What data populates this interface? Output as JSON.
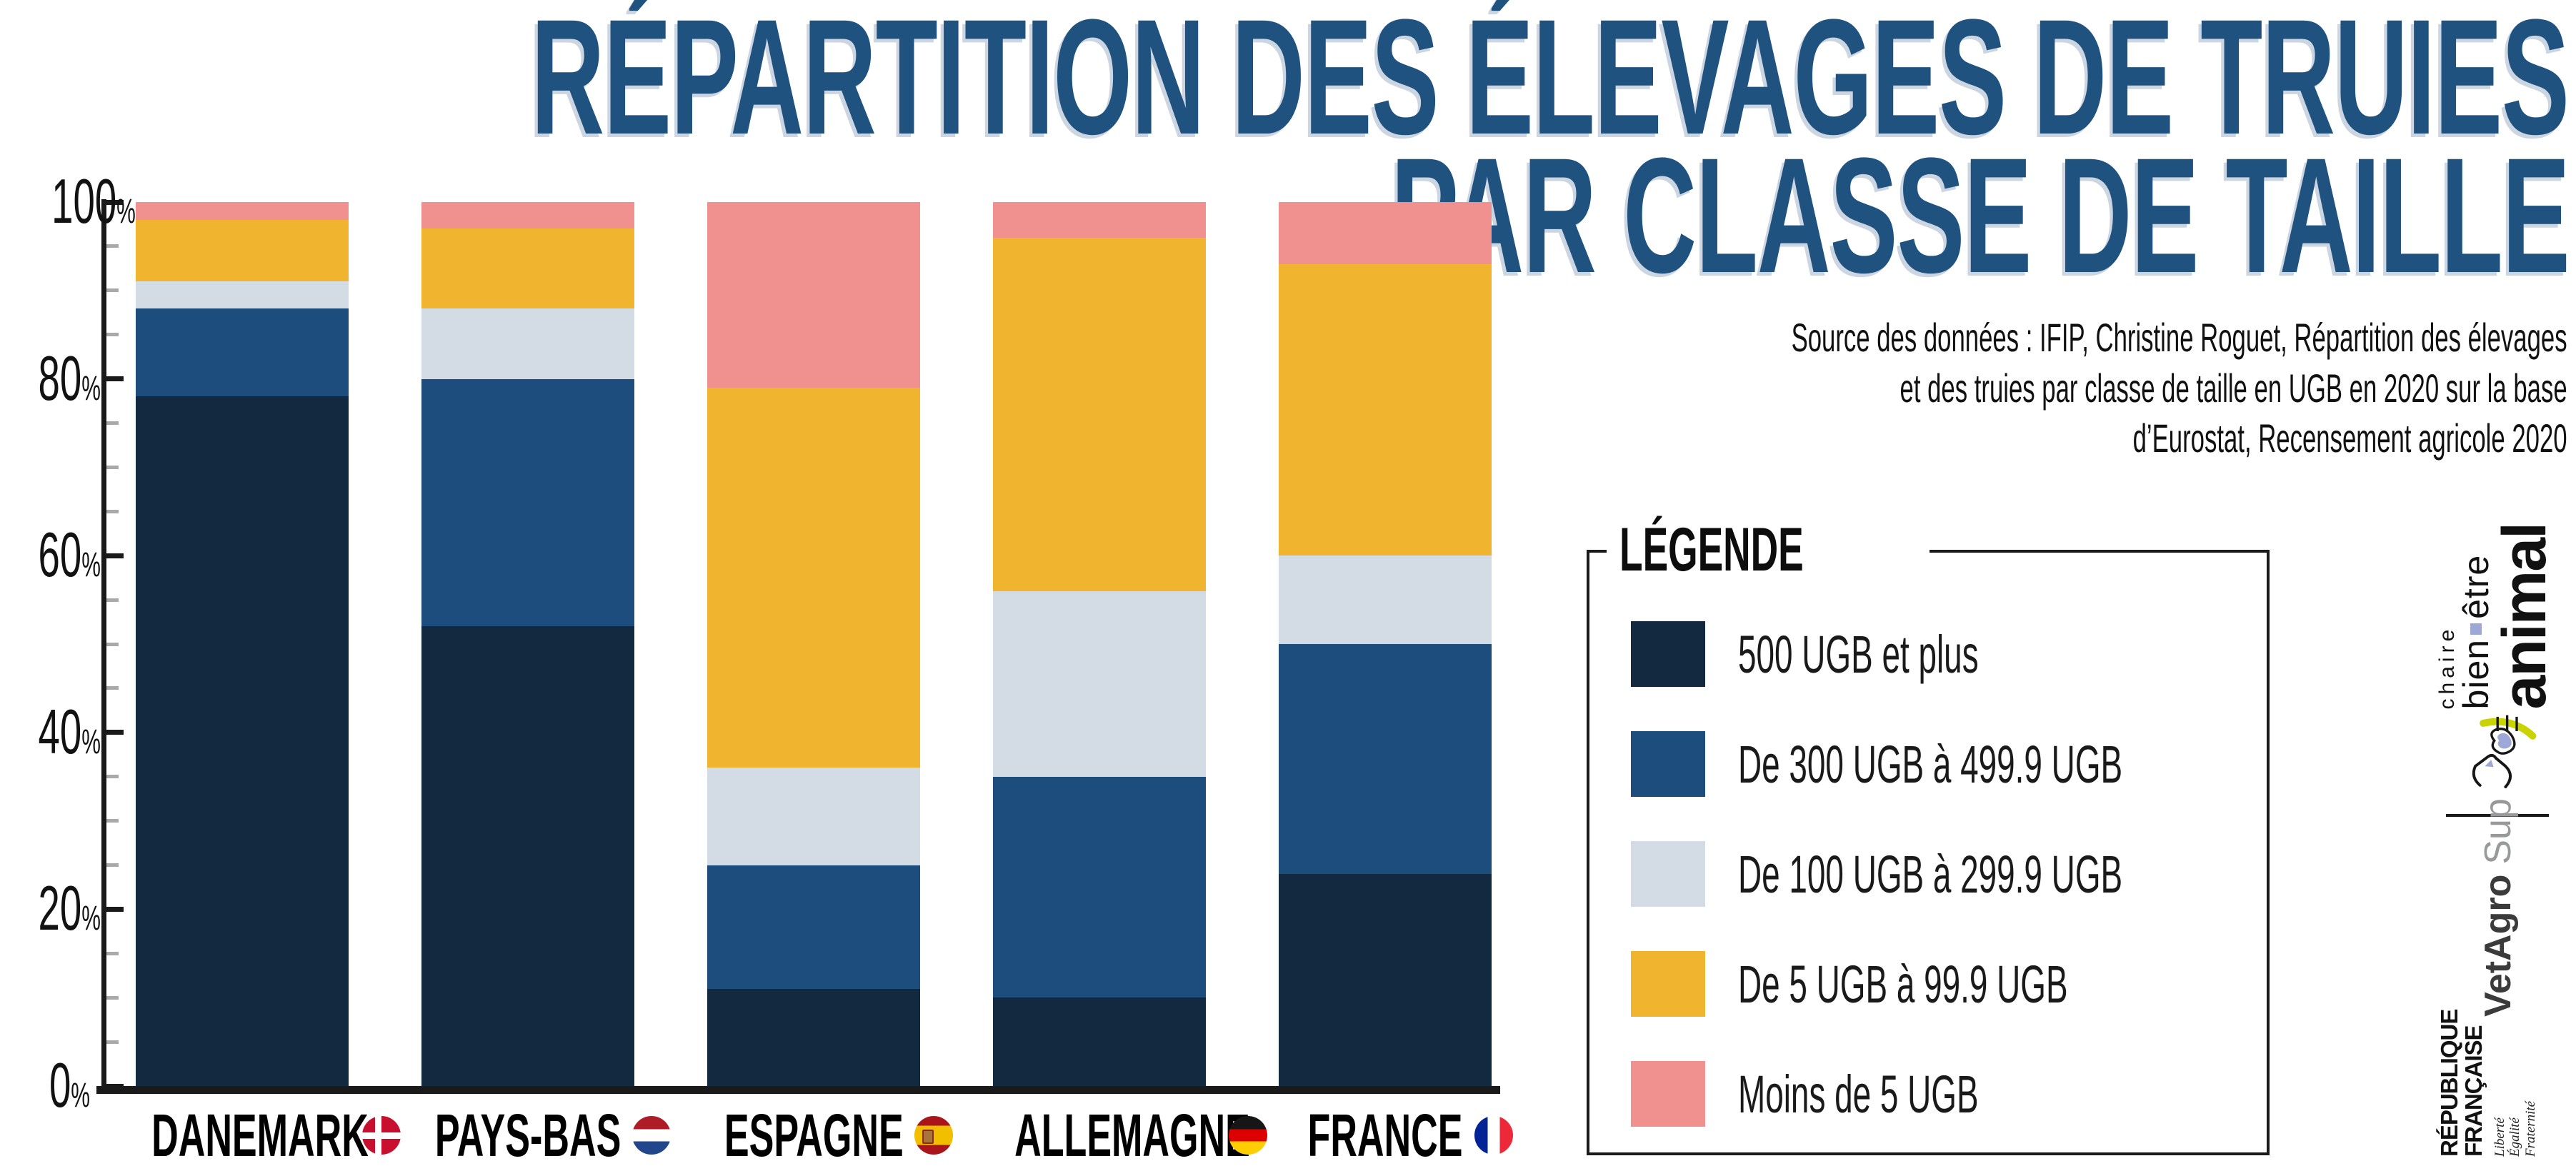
{
  "title": {
    "line1": "RÉPARTITION DES ÉLEVAGES DE TRUIES",
    "line2": "PAR CLASSE DE TAILLE"
  },
  "source": {
    "lines": [
      "Source des données : IFIP, Christine Roguet, Répartition des élevages",
      "et des truies par classe de taille en UGB en 2020 sur la base",
      "d’Eurostat, Recensement agricole 2020"
    ]
  },
  "legend": {
    "title": "LÉGENDE"
  },
  "chart_data": {
    "type": "bar",
    "stacking": "percent",
    "title": "Répartition des élevages de truies par classe de taille",
    "categories": [
      "DANEMARK",
      "PAYS-BAS",
      "ESPAGNE",
      "ALLEMAGNE",
      "FRANCE"
    ],
    "flags": [
      "denmark",
      "netherlands",
      "spain",
      "germany",
      "france"
    ],
    "series": [
      {
        "name": "500 UGB et plus",
        "color": "#122940",
        "values": [
          78,
          52,
          11,
          10,
          24
        ]
      },
      {
        "name": "De 300 UGB à 499.9 UGB",
        "color": "#1c4d7c",
        "values": [
          10,
          28,
          14,
          25,
          26
        ]
      },
      {
        "name": "De 100 UGB à 299.9 UGB",
        "color": "#d3dce5",
        "values": [
          3,
          8,
          11,
          21,
          10
        ]
      },
      {
        "name": "De 5 UGB à 99.9 UGB",
        "color": "#f0b42f",
        "values": [
          7,
          9,
          43,
          40,
          33
        ]
      },
      {
        "name": "Moins de 5 UGB",
        "color": "#f0908f",
        "values": [
          2,
          3,
          21,
          4,
          7
        ]
      }
    ],
    "ylim": [
      0,
      100
    ],
    "ytick_labels": [
      "0%",
      "20%",
      "40%",
      "60%",
      "80%",
      "100%"
    ],
    "minor_tick_step_pct": 5,
    "grid": false,
    "legend_position": "right-box",
    "axis_color": "#1a1a1a",
    "minor_tick_color": "#a9a9a9"
  },
  "logos": {
    "chaire": {
      "small": "chaire",
      "mid_left": "bien",
      "mid_right": "être",
      "big": "animal",
      "accent": "#9da8d6",
      "swoosh": "#c9d300"
    },
    "vetagro": {
      "name": "VetAgro",
      "suffix": "Sup",
      "blue": "#a3add6",
      "green": "#c3d117"
    },
    "republique": {
      "line1": "RÉPUBLIQUE",
      "line2": "FRANÇAISE",
      "motto": [
        "Liberté",
        "Égalité",
        "Fraternité"
      ],
      "flag_blue": "#000091",
      "flag_red": "#e1000f"
    }
  }
}
